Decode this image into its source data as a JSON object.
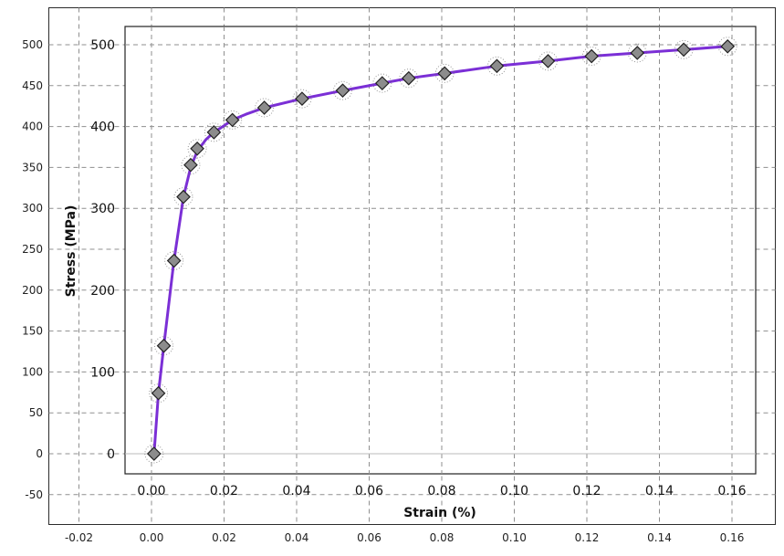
{
  "chart_data": {
    "type": "line",
    "title": "",
    "xlabel": "Strain (%)",
    "ylabel": "Stress (MPa)",
    "xlim": [
      0.0,
      0.16
    ],
    "ylim": [
      0,
      500
    ],
    "outer_xlim": [
      -0.02,
      0.16
    ],
    "outer_ylim": [
      -50,
      500
    ],
    "grid": true,
    "outer_x_ticks": [
      "-0.02",
      "0.00",
      "0.02",
      "0.04",
      "0.06",
      "0.08",
      "0.10",
      "0.12",
      "0.14",
      "0.16"
    ],
    "outer_y_ticks": [
      "500",
      "450",
      "400",
      "350",
      "300",
      "250",
      "200",
      "150",
      "100",
      "50",
      "0",
      "-50"
    ],
    "inner_x_ticks": [
      "0.00",
      "0.02",
      "0.04",
      "0.06",
      "0.08",
      "0.10",
      "0.12",
      "0.14",
      "0.16"
    ],
    "inner_y_ticks": [
      "500",
      "400",
      "300",
      "200",
      "100",
      "0"
    ],
    "series": [
      {
        "name": "",
        "style": "markers",
        "marker": "diamond",
        "color": "#8c8c8c",
        "x": [
          0.0007,
          0.0019,
          0.0034,
          0.0062,
          0.0088,
          0.0108,
          0.0126,
          0.0172,
          0.0223,
          0.0311,
          0.0415,
          0.0527,
          0.0636,
          0.0709,
          0.0808,
          0.0952,
          0.1093,
          0.1213,
          0.1339,
          0.1467,
          0.1588
        ],
        "y": [
          0,
          74,
          132,
          236,
          314,
          353,
          373,
          393,
          408,
          423,
          434,
          444,
          453,
          459,
          465,
          474,
          480,
          486,
          490,
          494,
          498
        ]
      },
      {
        "name": "",
        "style": "line",
        "color": "#7b2fd6",
        "x": [
          0.0007,
          0.0019,
          0.0034,
          0.0062,
          0.0088,
          0.0108,
          0.0126,
          0.015,
          0.0172,
          0.02,
          0.0223,
          0.026,
          0.0311,
          0.0415,
          0.0527,
          0.0636,
          0.0709,
          0.0808,
          0.0952,
          0.1093,
          0.1213,
          0.1339,
          0.1467,
          0.1588
        ],
        "y": [
          0,
          74,
          132,
          236,
          314,
          350,
          370,
          384,
          393,
          401,
          408,
          415,
          423,
          434,
          444,
          453,
          459,
          465,
          474,
          480,
          486,
          490,
          494,
          498
        ]
      }
    ]
  }
}
